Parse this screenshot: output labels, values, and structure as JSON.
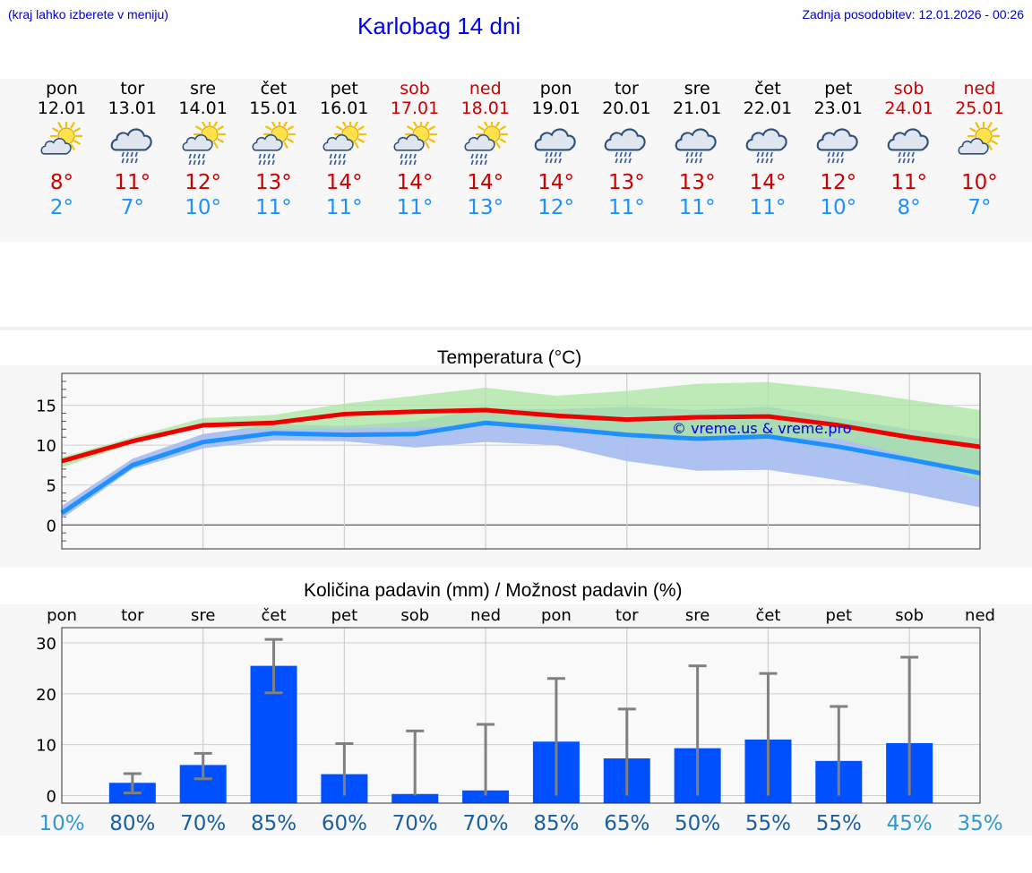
{
  "header": {
    "hint": "(kraj lahko izberete v meniju)",
    "title": "Karlobag 14 dni",
    "updated": "Zadnja posodobitev: 12.01.2026 - 00:26"
  },
  "days": [
    {
      "name": "pon",
      "date": "12.01",
      "weekend": false,
      "icon": "partly-cloudy-sun-icon",
      "tmax": "8°",
      "tmin": "2°"
    },
    {
      "name": "tor",
      "date": "13.01",
      "weekend": false,
      "icon": "cloud-rain-icon",
      "tmax": "11°",
      "tmin": "7°"
    },
    {
      "name": "sre",
      "date": "14.01",
      "weekend": false,
      "icon": "sun-cloud-rain-icon",
      "tmax": "12°",
      "tmin": "10°"
    },
    {
      "name": "čet",
      "date": "15.01",
      "weekend": false,
      "icon": "sun-cloud-rain-icon",
      "tmax": "13°",
      "tmin": "11°"
    },
    {
      "name": "pet",
      "date": "16.01",
      "weekend": false,
      "icon": "sun-cloud-rain-icon",
      "tmax": "14°",
      "tmin": "11°"
    },
    {
      "name": "sob",
      "date": "17.01",
      "weekend": true,
      "icon": "sun-cloud-rain-icon",
      "tmax": "14°",
      "tmin": "11°"
    },
    {
      "name": "ned",
      "date": "18.01",
      "weekend": true,
      "icon": "sun-cloud-rain-icon",
      "tmax": "14°",
      "tmin": "13°"
    },
    {
      "name": "pon",
      "date": "19.01",
      "weekend": false,
      "icon": "cloud-rain-icon",
      "tmax": "14°",
      "tmin": "12°"
    },
    {
      "name": "tor",
      "date": "20.01",
      "weekend": false,
      "icon": "cloud-rain-icon",
      "tmax": "13°",
      "tmin": "11°"
    },
    {
      "name": "sre",
      "date": "21.01",
      "weekend": false,
      "icon": "cloud-rain-icon",
      "tmax": "13°",
      "tmin": "11°"
    },
    {
      "name": "čet",
      "date": "22.01",
      "weekend": false,
      "icon": "cloud-rain-icon",
      "tmax": "14°",
      "tmin": "11°"
    },
    {
      "name": "pet",
      "date": "23.01",
      "weekend": false,
      "icon": "cloud-rain-icon",
      "tmax": "12°",
      "tmin": "10°"
    },
    {
      "name": "sob",
      "date": "24.01",
      "weekend": true,
      "icon": "cloud-rain-icon",
      "tmax": "11°",
      "tmin": "8°"
    },
    {
      "name": "ned",
      "date": "25.01",
      "weekend": true,
      "icon": "partly-cloudy-sun-icon",
      "tmax": "10°",
      "tmin": "7°"
    }
  ],
  "colors": {
    "max_line": "#ee0000",
    "min_line": "#1e90ff",
    "max_band": "#a8e4a0",
    "min_band": "#a9bff0",
    "overlap_band": "#7fc8a8",
    "bar": "#0050ff",
    "errorbar": "#808080",
    "prob_low": "#3399cc",
    "prob_high": "#1a5fa0"
  },
  "chart_data": [
    {
      "type": "line",
      "title": "Temperatura (°C)",
      "watermark": "© vreme.us & vreme.pro",
      "x": [
        0,
        1,
        2,
        3,
        4,
        5,
        6,
        7,
        8,
        9,
        10,
        11,
        12,
        13
      ],
      "ylim": [
        -3,
        19
      ],
      "yticks": [
        0,
        5,
        10,
        15
      ],
      "grid": true,
      "series": [
        {
          "name": "max",
          "values": [
            8,
            10.5,
            12.5,
            12.8,
            13.9,
            14.2,
            14.4,
            13.7,
            13.2,
            13.5,
            13.6,
            12.5,
            11,
            9.8
          ]
        },
        {
          "name": "min",
          "values": [
            1.5,
            7.5,
            10.4,
            11.5,
            11.3,
            11.4,
            12.8,
            12.1,
            11.3,
            10.8,
            11.1,
            9.8,
            8.2,
            6.5
          ]
        }
      ],
      "bands": [
        {
          "name": "max_range",
          "low": [
            7.2,
            10.2,
            12.2,
            12.0,
            12.1,
            12.2,
            12.6,
            12.8,
            11.4,
            10.8,
            11.0,
            10.8,
            8.6,
            5.6
          ],
          "high": [
            8.5,
            11.0,
            13.4,
            13.8,
            15.2,
            16.2,
            17.2,
            16.2,
            16.8,
            17.7,
            17.9,
            17.0,
            15.7,
            14.4
          ]
        },
        {
          "name": "min_range",
          "low": [
            0.8,
            7.0,
            9.6,
            10.6,
            10.5,
            9.7,
            10.4,
            10.0,
            8.0,
            6.8,
            6.9,
            5.6,
            4.0,
            2.2
          ],
          "high": [
            2.4,
            8.3,
            11.4,
            12.6,
            12.4,
            13.0,
            14.6,
            14.5,
            14.8,
            14.4,
            14.8,
            13.4,
            12.0,
            10.8
          ]
        }
      ]
    },
    {
      "type": "bar",
      "title": "Količina padavin (mm) / Možnost padavin (%)",
      "categories": [
        "pon",
        "tor",
        "sre",
        "čet",
        "pet",
        "sob",
        "ned",
        "pon",
        "tor",
        "sre",
        "čet",
        "pet",
        "sob",
        "ned"
      ],
      "values": [
        0,
        2.5,
        6,
        25.5,
        4.2,
        0.3,
        1,
        10.6,
        7.3,
        9.3,
        11,
        6.8,
        10.3,
        0
      ],
      "err_low": [
        0,
        0.5,
        3.3,
        20.2,
        0,
        0,
        0,
        0,
        0,
        0,
        0,
        0,
        0,
        0
      ],
      "err_high": [
        0,
        4.3,
        8.3,
        30.7,
        10.2,
        12.7,
        14,
        23,
        17,
        25.5,
        24,
        17.5,
        27.2,
        0
      ],
      "probability": [
        "10%",
        "80%",
        "70%",
        "85%",
        "60%",
        "70%",
        "70%",
        "85%",
        "65%",
        "50%",
        "55%",
        "55%",
        "45%",
        "35%"
      ],
      "ylim": [
        -1.5,
        33
      ],
      "yticks": [
        0,
        10,
        20,
        30
      ],
      "grid": true
    }
  ]
}
